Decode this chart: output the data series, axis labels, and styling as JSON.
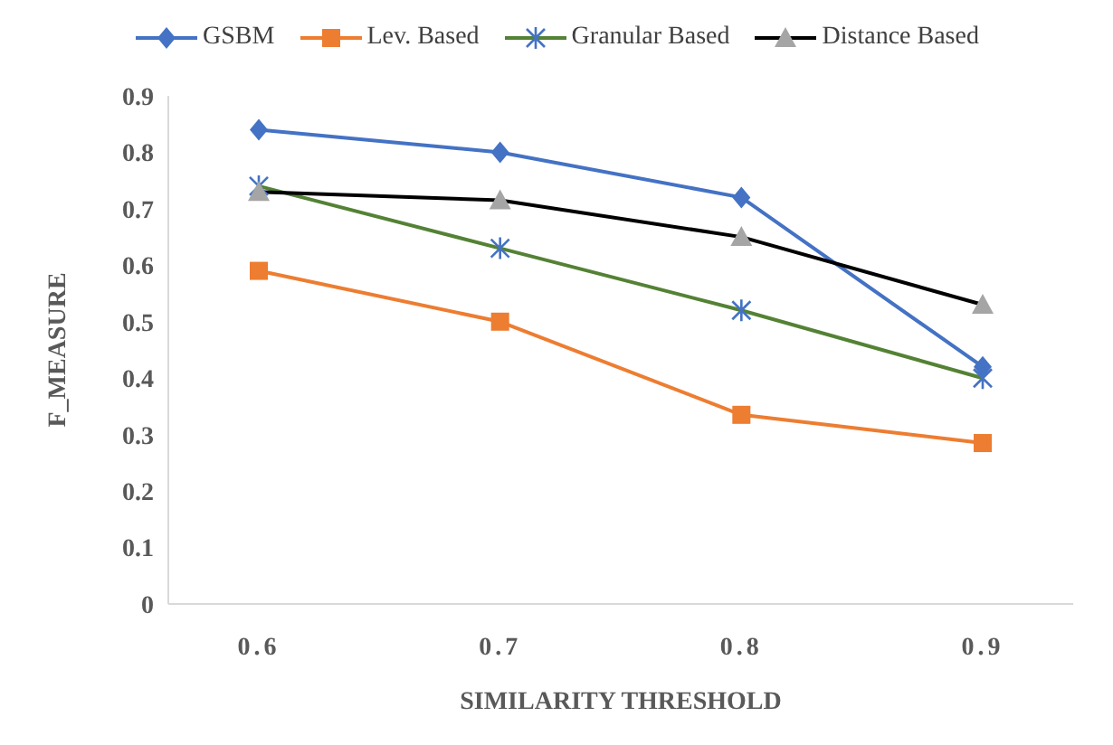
{
  "chart_data": {
    "type": "line",
    "xlabel": "SIMILARITY THRESHOLD",
    "ylabel": "F_MEASURE",
    "categories": [
      "0.6",
      "0.7",
      "0.8",
      "0.9"
    ],
    "series": [
      {
        "name": "GSBM",
        "color": "#4472c4",
        "marker": "diamond",
        "values": [
          0.84,
          0.8,
          0.72,
          0.42
        ]
      },
      {
        "name": "Lev. Based",
        "color": "#ed7d31",
        "marker": "square",
        "values": [
          0.59,
          0.5,
          0.335,
          0.285
        ]
      },
      {
        "name": "Granular Based",
        "color": "#548235",
        "marker": "cross",
        "values": [
          0.74,
          0.63,
          0.52,
          0.4
        ]
      },
      {
        "name": "Distance Based",
        "color": "#000000",
        "marker": "triangle",
        "values": [
          0.73,
          0.715,
          0.65,
          0.53
        ]
      }
    ],
    "ylim": [
      0,
      0.9
    ],
    "yticks": [
      0,
      0.1,
      0.2,
      0.3,
      0.4,
      0.5,
      0.6,
      0.7,
      0.8,
      0.9
    ],
    "grid": false,
    "legend": "top",
    "line_style": "solid"
  }
}
